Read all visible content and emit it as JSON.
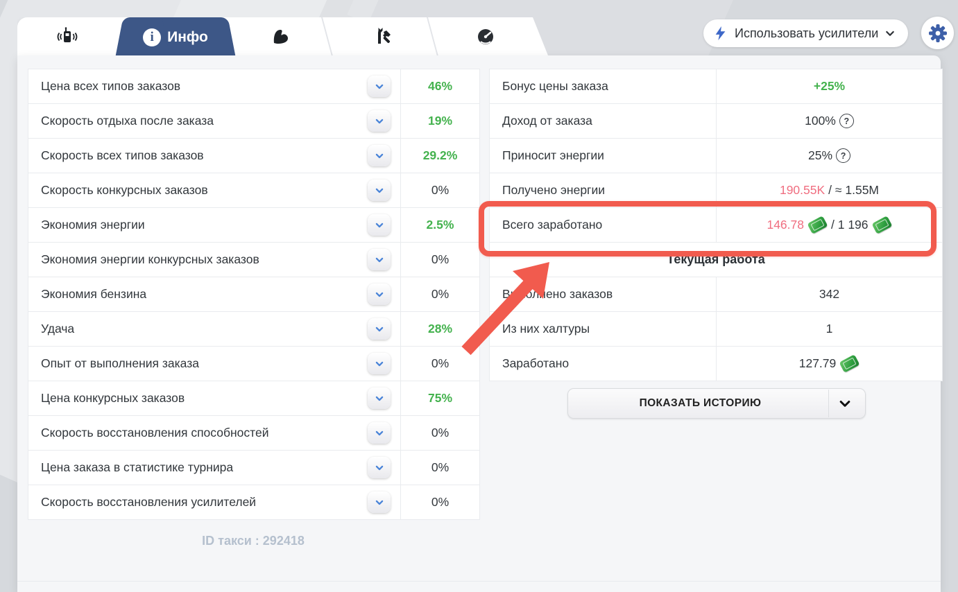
{
  "tabs": {
    "items": [
      {
        "id": "radio",
        "icon": "walkie-talkie-icon",
        "active": false
      },
      {
        "id": "info",
        "icon": "info-icon",
        "label": "Инфо",
        "active": true
      },
      {
        "id": "skills",
        "icon": "muscle-icon",
        "active": false
      },
      {
        "id": "tools",
        "icon": "tools-icon",
        "active": false
      },
      {
        "id": "speed",
        "icon": "speedometer-icon",
        "active": false
      }
    ],
    "boosters_button_label": "Использовать усилители"
  },
  "left_table": {
    "rows": [
      {
        "label": "Цена всех типов заказов",
        "value": "46%",
        "green": true
      },
      {
        "label": "Скорость отдыха после заказа",
        "value": "19%",
        "green": true
      },
      {
        "label": "Скорость всех типов заказов",
        "value": "29.2%",
        "green": true
      },
      {
        "label": "Скорость конкурсных заказов",
        "value": "0%",
        "green": false
      },
      {
        "label": "Экономия энергии",
        "value": "2.5%",
        "green": true
      },
      {
        "label": "Экономия энергии конкурсных заказов",
        "value": "0%",
        "green": false
      },
      {
        "label": "Экономия бензина",
        "value": "0%",
        "green": false
      },
      {
        "label": "Удача",
        "value": "28%",
        "green": true
      },
      {
        "label": "Опыт от выполнения заказа",
        "value": "0%",
        "green": false
      },
      {
        "label": "Цена конкурсных заказов",
        "value": "75%",
        "green": true
      },
      {
        "label": "Скорость восстановления способностей",
        "value": "0%",
        "green": false
      },
      {
        "label": "Цена заказа в статистике турнира",
        "value": "0%",
        "green": false
      },
      {
        "label": "Скорость восстановления усилителей",
        "value": "0%",
        "green": false
      }
    ]
  },
  "right_table": {
    "rows": [
      {
        "label": "Бонус цены заказа",
        "value": [
          {
            "t": "+25%",
            "c": "green"
          }
        ]
      },
      {
        "label": "Доход от заказа",
        "value": [
          {
            "t": "100%"
          },
          {
            "i": "help"
          }
        ]
      },
      {
        "label": "Приносит энергии",
        "value": [
          {
            "t": "25%"
          },
          {
            "i": "help"
          }
        ]
      },
      {
        "label": "Получено энергии",
        "value": [
          {
            "t": "190.55K",
            "c": "pink"
          },
          {
            "t": " / ≈ 1.55M"
          }
        ]
      },
      {
        "label": "Всего заработано",
        "value": [
          {
            "t": "146.78",
            "c": "pink"
          },
          {
            "i": "money"
          },
          {
            "t": " / 1 196"
          },
          {
            "i": "money"
          }
        ],
        "highlighted": true
      },
      {
        "header": "Текущая работа"
      },
      {
        "label": "Выполнено заказов",
        "value": [
          {
            "t": "342"
          }
        ]
      },
      {
        "label": "Из них халтуры",
        "value": [
          {
            "t": "1"
          }
        ]
      },
      {
        "label": "Заработано",
        "value": [
          {
            "t": "127.79"
          },
          {
            "i": "money"
          }
        ]
      }
    ],
    "history_button_label": "ПОКАЗАТЬ ИСТОРИЮ"
  },
  "footer": {
    "taxi_id_text": "ID такси : 292418"
  },
  "colors": {
    "positive_green": "#44b24e",
    "current_pink": "#f06e80",
    "annotation_red": "#f15b4e",
    "active_tab_blue": "#3d5787",
    "control_blue": "#3e68c8"
  }
}
